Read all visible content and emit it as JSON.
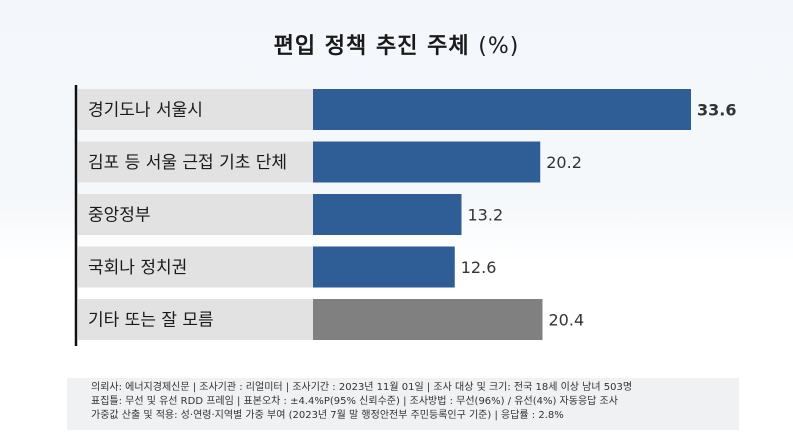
{
  "chart_data": {
    "type": "bar",
    "orientation": "horizontal",
    "title": "편입 정책 추진 주체",
    "title_unit": "(%)",
    "categories": [
      "경기도나 서울시",
      "김포 등 서울 근접 기초 단체",
      "중앙정부",
      "국회나 정치권",
      "기타 또는 잘 모름"
    ],
    "values": [
      33.6,
      20.2,
      13.2,
      12.6,
      20.4
    ],
    "value_labels": [
      "33.6",
      "20.2",
      "13.2",
      "12.6",
      "20.4"
    ],
    "bar_colors": [
      "#2f5d95",
      "#2f5d95",
      "#2f5d95",
      "#2f5d95",
      "#808080"
    ],
    "xlim": [
      0,
      35
    ],
    "grid": false,
    "legend": "none"
  },
  "footer": {
    "line1": "의뢰사: 에너지경제신문 | 조사기관 : 리얼미터 | 조사기간 : 2023년 11월 01일 | 조사 대상 및 크기: 전국 18세 이상 남녀 503명",
    "line2": "표집틀: 무선 및 유선 RDD 프레임 | 표본오차 : ±4.4%P(95% 신뢰수준) | 조사방법 : 무선(96%) / 유선(4%) 자동응답 조사",
    "line3": "가중값 산출 및 적용: 성·연령·지역별 가중 부여 (2023년 7월 말 행정안전부 주민등록인구 기준) | 응답률 : 2.8%"
  }
}
